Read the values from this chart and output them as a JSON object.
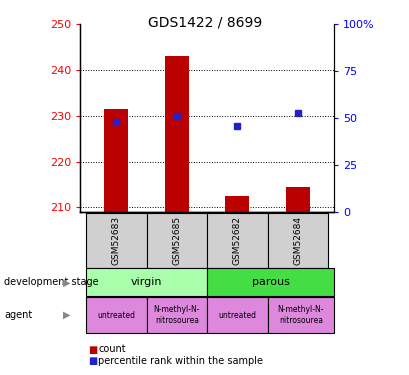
{
  "title": "GDS1422 / 8699",
  "samples": [
    "GSM52683",
    "GSM52685",
    "GSM52682",
    "GSM52684"
  ],
  "bar_values": [
    231.5,
    243.0,
    212.5,
    214.5
  ],
  "dot_values": [
    48,
    51,
    46,
    53
  ],
  "ylim_left": [
    209,
    250
  ],
  "ylim_right": [
    0,
    100
  ],
  "yticks_left": [
    210,
    220,
    230,
    240,
    250
  ],
  "yticks_right": [
    0,
    25,
    50,
    75,
    100
  ],
  "ytick_labels_right": [
    "0",
    "25",
    "50",
    "75",
    "100%"
  ],
  "bar_color": "#bb0000",
  "dot_color": "#2222cc",
  "bar_bottom": 209,
  "dev_stage_color_virgin": "#aaffaa",
  "dev_stage_color_parous": "#44dd44",
  "agent_color": "#dd88dd",
  "sample_bg_color": "#d0d0d0",
  "legend_count_color": "#bb0000",
  "legend_dot_color": "#2222cc",
  "bar_width": 0.4
}
